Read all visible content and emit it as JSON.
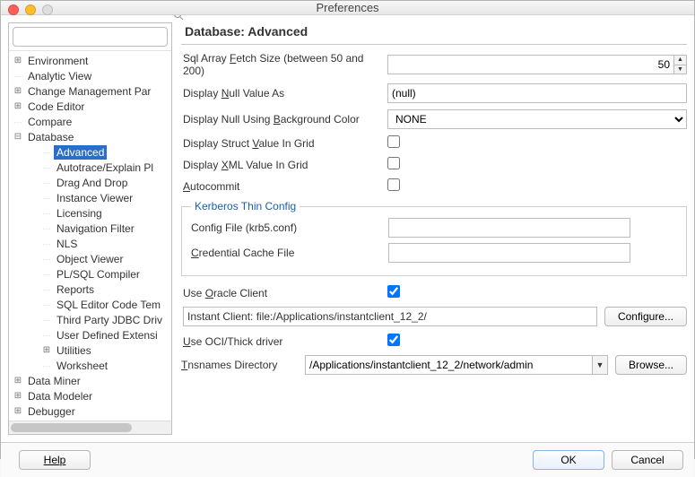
{
  "window": {
    "title": "Preferences"
  },
  "sidebar": {
    "search_placeholder": "",
    "items": [
      {
        "label": "Environment",
        "twisty": "plus",
        "depth": 1
      },
      {
        "label": "Analytic View",
        "twisty": "dots",
        "depth": 1
      },
      {
        "label": "Change Management Par",
        "twisty": "plus",
        "depth": 1
      },
      {
        "label": "Code Editor",
        "twisty": "plus",
        "depth": 1
      },
      {
        "label": "Compare",
        "twisty": "dots",
        "depth": 1
      },
      {
        "label": "Database",
        "twisty": "minus",
        "depth": 1
      },
      {
        "label": "Advanced",
        "twisty": "dots",
        "depth": 2,
        "selected": true
      },
      {
        "label": "Autotrace/Explain Pl",
        "twisty": "dots",
        "depth": 2
      },
      {
        "label": "Drag And Drop",
        "twisty": "dots",
        "depth": 2
      },
      {
        "label": "Instance Viewer",
        "twisty": "dots",
        "depth": 2
      },
      {
        "label": "Licensing",
        "twisty": "dots",
        "depth": 2
      },
      {
        "label": "Navigation Filter",
        "twisty": "dots",
        "depth": 2
      },
      {
        "label": "NLS",
        "twisty": "dots",
        "depth": 2
      },
      {
        "label": "Object Viewer",
        "twisty": "dots",
        "depth": 2
      },
      {
        "label": "PL/SQL Compiler",
        "twisty": "dots",
        "depth": 2
      },
      {
        "label": "Reports",
        "twisty": "dots",
        "depth": 2
      },
      {
        "label": "SQL Editor Code Tem",
        "twisty": "dots",
        "depth": 2
      },
      {
        "label": "Third Party JDBC Driv",
        "twisty": "dots",
        "depth": 2
      },
      {
        "label": "User Defined Extensi",
        "twisty": "dots",
        "depth": 2
      },
      {
        "label": "Utilities",
        "twisty": "plus",
        "depth": 2
      },
      {
        "label": "Worksheet",
        "twisty": "dots",
        "depth": 2
      },
      {
        "label": "Data Miner",
        "twisty": "plus",
        "depth": 1
      },
      {
        "label": "Data Modeler",
        "twisty": "plus",
        "depth": 1
      },
      {
        "label": "Debugger",
        "twisty": "plus",
        "depth": 1
      }
    ]
  },
  "content": {
    "heading": "Database: Advanced",
    "sql_fetch_label_pre": "Sql Array ",
    "sql_fetch_label_u": "F",
    "sql_fetch_label_post": "etch Size (between 50 and 200)",
    "sql_fetch_value": "50",
    "null_value_label_pre": "Display ",
    "null_value_label_u": "N",
    "null_value_label_post": "ull Value As",
    "null_value": "(null)",
    "null_bg_label_pre": "Display Null Using ",
    "null_bg_label_u": "B",
    "null_bg_label_post": "ackground Color",
    "null_bg_value": "NONE",
    "struct_label_pre": "Display Struct ",
    "struct_label_u": "V",
    "struct_label_post": "alue In Grid",
    "xml_label_pre": "Display ",
    "xml_label_u": "X",
    "xml_label_post": "ML Value In Grid",
    "autocommit_label_u": "A",
    "autocommit_label_post": "utocommit",
    "kerberos_legend": "Kerberos Thin Config",
    "kerb_config_pre": "Confi",
    "kerb_config_u": "g",
    "kerb_config_post": " File (krb5.conf)",
    "kerb_cred_u": "C",
    "kerb_cred_post": "redential Cache File",
    "use_oracle_pre": "Use ",
    "use_oracle_u": "O",
    "use_oracle_post": "racle Client",
    "instant_client": "Instant Client: file:/Applications/instantclient_12_2/",
    "configure_btn": "Configure...",
    "use_oci_u": "U",
    "use_oci_post": "se OCI/Thick driver",
    "tns_u": "T",
    "tns_post": "nsnames Directory",
    "tns_value": "/Applications/instantclient_12_2/network/admin",
    "browse_btn": "Browse..."
  },
  "footer": {
    "help": "Help",
    "ok": "OK",
    "cancel": "Cancel"
  }
}
